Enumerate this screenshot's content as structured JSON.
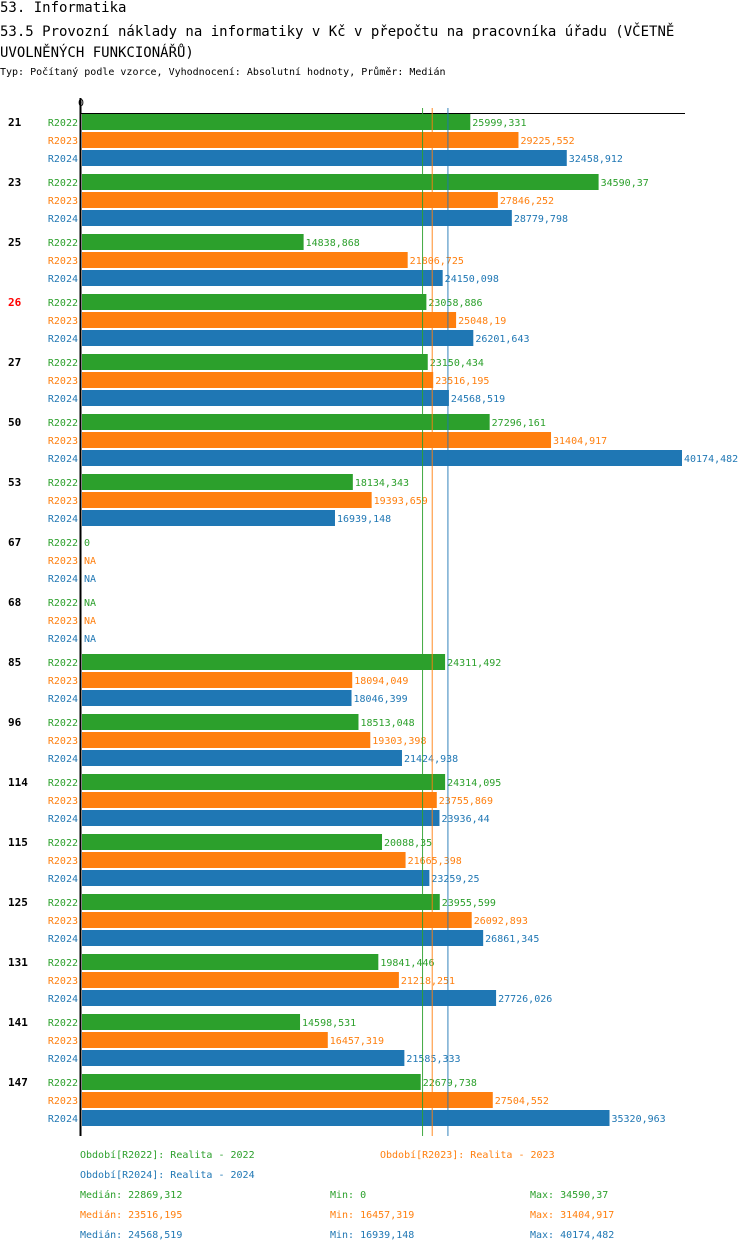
{
  "header": {
    "section": "53. Informatika",
    "title": "53.5 Provozní náklady na informatiky v Kč v přepočtu na pracovníka úřadu (VČETNĚ UVOLNĚNÝCH FUNKCIONÁŘŮ)",
    "subtitle": "Typ: Počítaný podle vzorce, Vyhodnocení: Absolutní hodnoty, Průměr: Medián"
  },
  "colors": {
    "R2022": "#2ca02c",
    "R2023": "#ff7f0e",
    "R2024": "#1f77b4",
    "highlight": "#ff0000"
  },
  "chart_data": {
    "type": "bar",
    "orientation": "horizontal",
    "axis_zero_label": "0",
    "xlim": [
      0,
      40174.482
    ],
    "series_names": [
      "R2022",
      "R2023",
      "R2024"
    ],
    "categories": [
      {
        "label": "21",
        "highlight": false,
        "values": [
          "25999,331",
          "29225,552",
          "32458,912"
        ]
      },
      {
        "label": "23",
        "highlight": false,
        "values": [
          "34590,37",
          "27846,252",
          "28779,798"
        ]
      },
      {
        "label": "25",
        "highlight": false,
        "values": [
          "14838,868",
          "21806,725",
          "24150,098"
        ]
      },
      {
        "label": "26",
        "highlight": true,
        "values": [
          "23058,886",
          "25048,19",
          "26201,643"
        ]
      },
      {
        "label": "27",
        "highlight": false,
        "values": [
          "23150,434",
          "23516,195",
          "24568,519"
        ]
      },
      {
        "label": "50",
        "highlight": false,
        "values": [
          "27296,161",
          "31404,917",
          "40174,482"
        ]
      },
      {
        "label": "53",
        "highlight": false,
        "values": [
          "18134,343",
          "19393,659",
          "16939,148"
        ]
      },
      {
        "label": "67",
        "highlight": false,
        "values": [
          "0",
          "NA",
          "NA"
        ]
      },
      {
        "label": "68",
        "highlight": false,
        "values": [
          "NA",
          "NA",
          "NA"
        ]
      },
      {
        "label": "85",
        "highlight": false,
        "values": [
          "24311,492",
          "18094,049",
          "18046,399"
        ]
      },
      {
        "label": "96",
        "highlight": false,
        "values": [
          "18513,048",
          "19303,398",
          "21424,938"
        ]
      },
      {
        "label": "114",
        "highlight": false,
        "values": [
          "24314,095",
          "23755,869",
          "23936,44"
        ]
      },
      {
        "label": "115",
        "highlight": false,
        "values": [
          "20088,35",
          "21665,398",
          "23259,25"
        ]
      },
      {
        "label": "125",
        "highlight": false,
        "values": [
          "23955,599",
          "26092,893",
          "26861,345"
        ]
      },
      {
        "label": "131",
        "highlight": false,
        "values": [
          "19841,446",
          "21218,251",
          "27726,026"
        ]
      },
      {
        "label": "141",
        "highlight": false,
        "values": [
          "14598,531",
          "16457,319",
          "21585,333"
        ]
      },
      {
        "label": "147",
        "highlight": false,
        "values": [
          "22679,738",
          "27504,552",
          "35320,963"
        ]
      }
    ],
    "medians": [
      22869.312,
      23516.195,
      24568.519
    ]
  },
  "legend": {
    "periods": [
      "Období[R2022]: Realita - 2022",
      "Období[R2023]: Realita - 2023",
      "Období[R2024]: Realita - 2024"
    ],
    "stats": [
      {
        "median": "Medián: 22869,312",
        "min": "Min: 0",
        "max": "Max: 34590,37"
      },
      {
        "median": "Medián: 23516,195",
        "min": "Min: 16457,319",
        "max": "Max: 31404,917"
      },
      {
        "median": "Medián: 24568,519",
        "min": "Min: 16939,148",
        "max": "Max: 40174,482"
      }
    ]
  }
}
